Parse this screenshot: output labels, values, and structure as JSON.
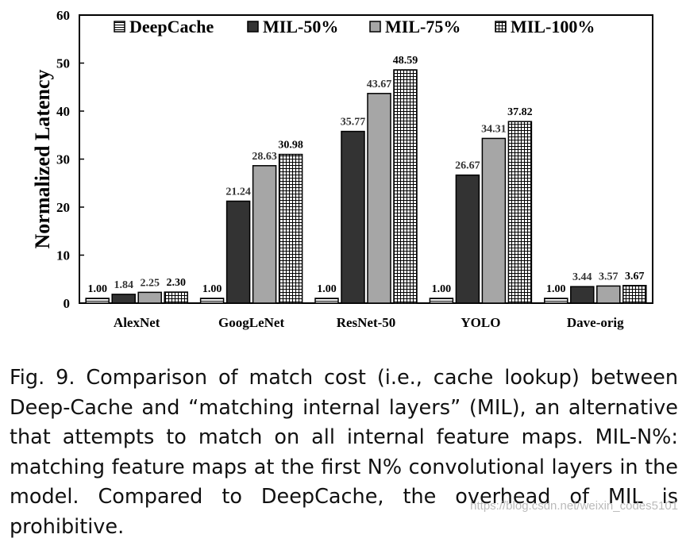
{
  "chart_data": {
    "type": "bar",
    "title": "",
    "ylabel": "Normalized Latency",
    "xlabel": "",
    "ylim": [
      0,
      60
    ],
    "yticks": [
      0,
      10,
      20,
      30,
      40,
      50,
      60
    ],
    "categories": [
      "AlexNet",
      "GoogLeNet",
      "ResNet-50",
      "YOLO",
      "Dave-orig"
    ],
    "legend_position": "top",
    "series": [
      {
        "name": "DeepCache",
        "values": [
          1.0,
          1.0,
          1.0,
          1.0,
          1.0
        ],
        "labels": [
          "1.00",
          "1.00",
          "1.00",
          "1.00",
          "1.00"
        ],
        "style": "hlines",
        "color": "#ffffff"
      },
      {
        "name": "MIL-50%",
        "values": [
          1.84,
          21.24,
          35.77,
          26.67,
          3.44
        ],
        "labels": [
          "1.84",
          "21.24",
          "35.77",
          "26.67",
          "3.44"
        ],
        "style": "solid",
        "color": "#333333"
      },
      {
        "name": "MIL-75%",
        "values": [
          2.25,
          28.63,
          43.67,
          34.31,
          3.57
        ],
        "labels": [
          "2.25",
          "28.63",
          "43.67",
          "34.31",
          "3.57"
        ],
        "style": "solid",
        "color": "#a6a6a6"
      },
      {
        "name": "MIL-100%",
        "values": [
          2.3,
          30.98,
          48.59,
          37.82,
          3.67
        ],
        "labels": [
          "2.30",
          "30.98",
          "48.59",
          "37.82",
          "3.67"
        ],
        "style": "grid",
        "color": "#ffffff"
      }
    ]
  },
  "caption": "Fig. 9.  Comparison of match cost (i.e., cache lookup) between Deep-Cache and “matching internal layers” (MIL), an alternative that attempts to match on all internal feature maps. MIL-N%: matching feature maps at the first N% convolutional layers in the model. Compared to DeepCache, the overhead of MIL is prohibitive.",
  "watermark": "https://blog.csdn.net/weixin_codes5101"
}
